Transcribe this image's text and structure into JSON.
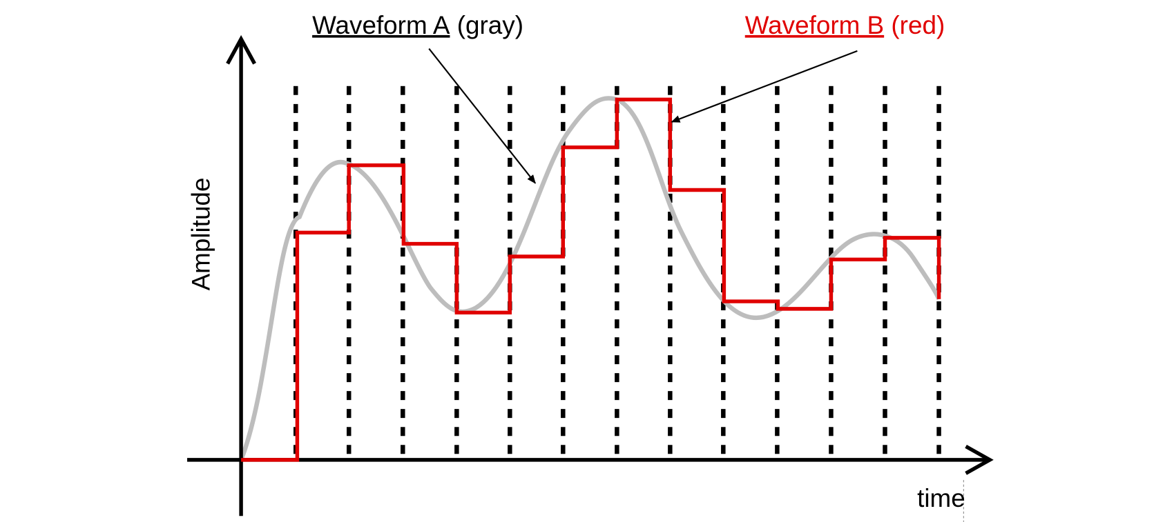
{
  "legend": {
    "waveform_a": {
      "name": "Waveform A",
      "note": "(gray)"
    },
    "waveform_b": {
      "name": "Waveform B",
      "note": "(red)"
    }
  },
  "axes": {
    "y_label": "Amplitude",
    "x_label": "time"
  }
}
